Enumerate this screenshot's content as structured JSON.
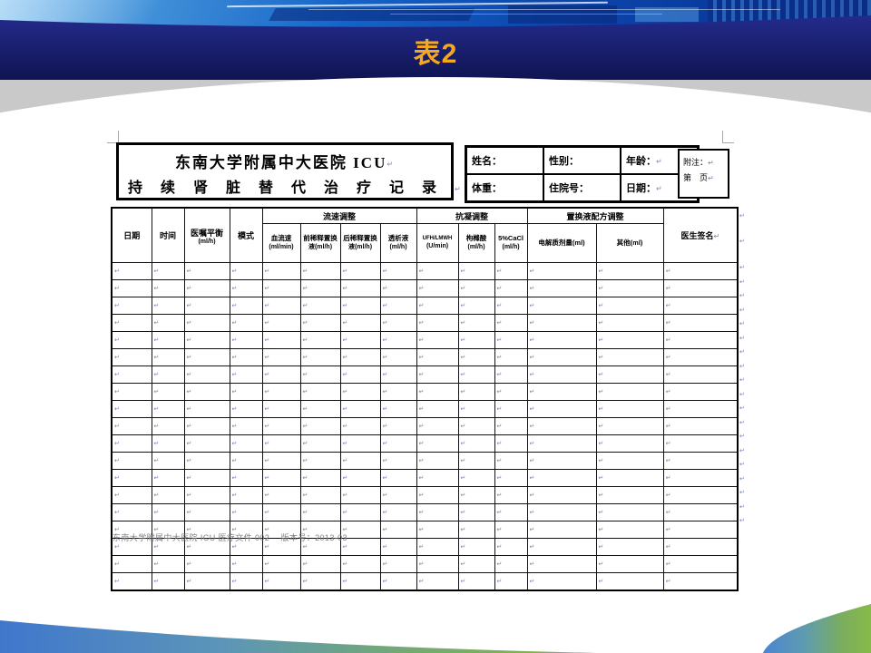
{
  "slide": {
    "title": "表2",
    "colors": {
      "banner_navy_top": "#232b8c",
      "banner_navy_bottom": "#101453",
      "title_gold": "#f5a81e",
      "stage_gray": "#c9c9c9",
      "swoosh_blue": "#4077cd",
      "swoosh_green": "#86b74c"
    }
  },
  "marks": {
    "return_mark": "↵"
  },
  "document": {
    "header_box": {
      "line1": "东南大学附属中大医院 ICU",
      "line2": "持续肾脏替代治疗记录"
    },
    "patient_info": {
      "rows": [
        [
          "姓名：",
          "性别：",
          "年龄："
        ],
        [
          "体重：",
          "住院号：",
          "日期："
        ]
      ]
    },
    "note_box": {
      "line1": "附注：",
      "line2": "第　页"
    },
    "table": {
      "simple_left": [
        {
          "l1": "日期",
          "l2": ""
        },
        {
          "l1": "时间",
          "l2": ""
        },
        {
          "l1": "医嘱平衡",
          "l2": "(ml/h)"
        },
        {
          "l1": "模式",
          "l2": ""
        }
      ],
      "groups": [
        {
          "label": "流速调整",
          "subs": [
            {
              "l1": "血流速",
              "l2": "(ml/min)"
            },
            {
              "l1": "前稀释置换",
              "l2": "液(ml/h)"
            },
            {
              "l1": "后稀释置换",
              "l2": "液(ml/h)"
            },
            {
              "l1": "透析液",
              "l2": "(ml/h)"
            }
          ]
        },
        {
          "label": "抗凝调整",
          "subs": [
            {
              "l1": "UFH/LMWH",
              "l2": "(U/min)"
            },
            {
              "l1": "枸橼酸",
              "l2": "(ml/h)"
            },
            {
              "l1": "5%CaCl",
              "l2": "(ml/h)"
            }
          ]
        },
        {
          "label": "置换液配方调整",
          "subs": [
            {
              "l1": "电解质剂量(ml)",
              "l2": ""
            },
            {
              "l1": "其他(ml)",
              "l2": ""
            }
          ]
        }
      ],
      "signature_col": "医生签名",
      "body": {
        "rows": 19,
        "cols": 14
      },
      "footer": "东南大学附属中大医院 ICU 医疗文件 002　 版本号：2013-03"
    }
  }
}
